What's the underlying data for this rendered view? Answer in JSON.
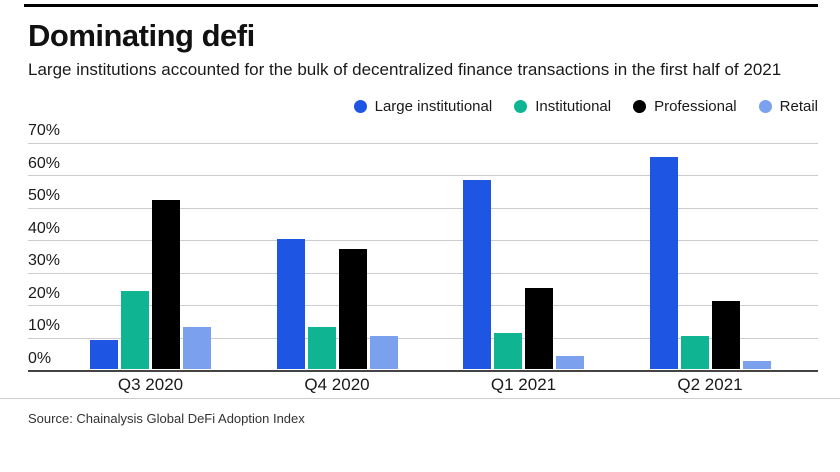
{
  "header": {
    "title": "Dominating defi",
    "subtitle": "Large institutions accounted for the bulk of decentralized finance transactions in the first half of 2021"
  },
  "footer": {
    "source": "Source: Chainalysis Global DeFi Adoption Index"
  },
  "colors": {
    "accent_blue": "#1e56e3",
    "accent_teal": "#0fb493",
    "accent_black": "#000000",
    "accent_light_blue": "#7ba0ee",
    "gridline": "#cccccc",
    "axis_line": "#444444",
    "top_rule": "#000000"
  },
  "chart_data": {
    "type": "bar",
    "title": "Dominating defi",
    "categories": [
      "Q3 2020",
      "Q4 2020",
      "Q1 2021",
      "Q2 2021"
    ],
    "series": [
      {
        "name": "Large institutional",
        "color": "#1e56e3",
        "values": [
          9,
          40,
          58,
          65
        ]
      },
      {
        "name": "Institutional",
        "color": "#0fb493",
        "values": [
          24,
          13,
          11,
          10
        ]
      },
      {
        "name": "Professional",
        "color": "#000000",
        "values": [
          52,
          37,
          25,
          21
        ]
      },
      {
        "name": "Retail",
        "color": "#7ba0ee",
        "values": [
          13,
          10,
          4,
          2.5
        ]
      }
    ],
    "ylim": [
      0,
      70
    ],
    "ytick_step": 10,
    "ytick_labels": [
      "0%",
      "10%",
      "20%",
      "30%",
      "40%",
      "50%",
      "60%",
      "70%"
    ],
    "grid": true,
    "legend_position": "top-right"
  }
}
